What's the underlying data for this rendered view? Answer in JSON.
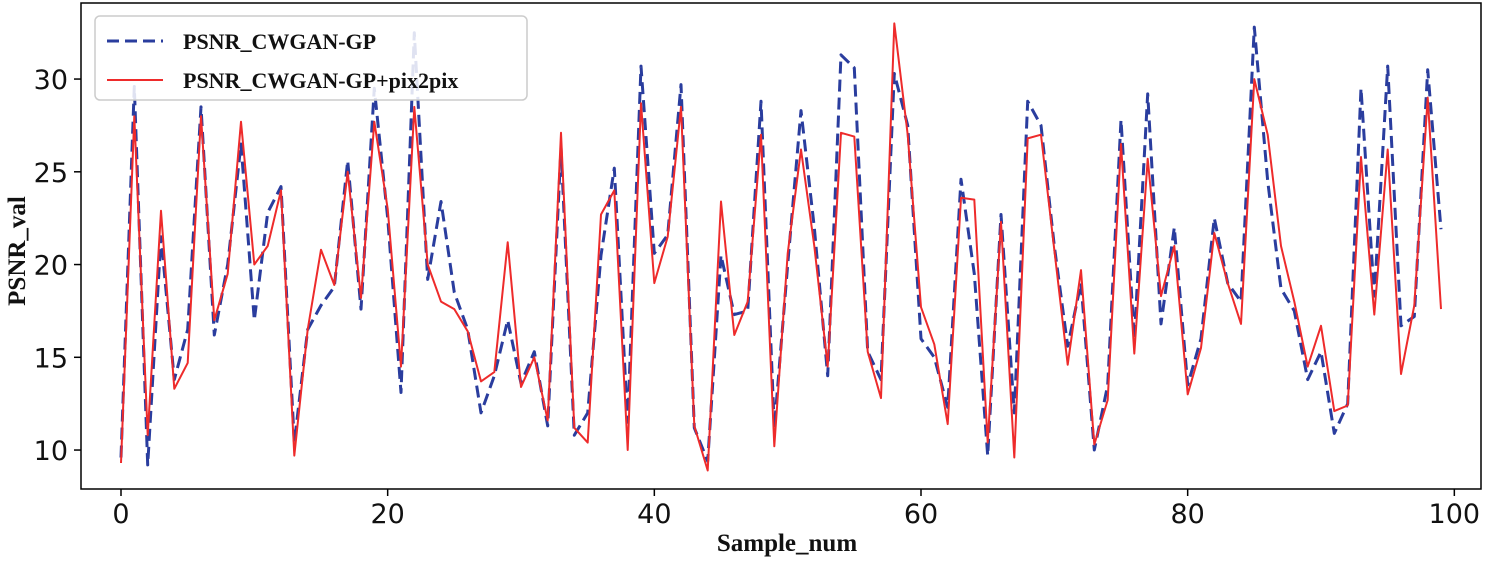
{
  "chart_data": {
    "type": "line",
    "title": "",
    "xlabel": "Sample_num",
    "ylabel": "PSNR_val",
    "xlim": [
      -3,
      102
    ],
    "ylim": [
      7.9,
      34.1
    ],
    "xticks": [
      0,
      20,
      40,
      60,
      80,
      100
    ],
    "yticks": [
      10,
      15,
      20,
      25,
      30
    ],
    "grid": false,
    "legend_position": "top-left",
    "x": [
      0,
      1,
      2,
      3,
      4,
      5,
      6,
      7,
      8,
      9,
      10,
      11,
      12,
      13,
      14,
      15,
      16,
      17,
      18,
      19,
      20,
      21,
      22,
      23,
      24,
      25,
      26,
      27,
      28,
      29,
      30,
      31,
      32,
      33,
      34,
      35,
      36,
      37,
      38,
      39,
      40,
      41,
      42,
      43,
      44,
      45,
      46,
      47,
      48,
      49,
      50,
      51,
      52,
      53,
      54,
      55,
      56,
      57,
      58,
      59,
      60,
      61,
      62,
      63,
      64,
      65,
      66,
      67,
      68,
      69,
      70,
      71,
      72,
      73,
      74,
      75,
      76,
      77,
      78,
      79,
      80,
      81,
      82,
      83,
      84,
      85,
      86,
      87,
      88,
      89,
      90,
      91,
      92,
      93,
      94,
      95,
      96,
      97,
      98,
      99
    ],
    "series": [
      {
        "name": "PSNR_CWGAN-GP",
        "color": "#2a3d9e",
        "style": "dashed",
        "values": [
          9.6,
          29.6,
          9.2,
          21.5,
          13.8,
          16.5,
          28.5,
          16.2,
          20.0,
          26.5,
          17.0,
          22.8,
          24.2,
          10.4,
          16.5,
          17.8,
          18.8,
          25.6,
          17.6,
          29.5,
          22.5,
          13.1,
          32.5,
          19.2,
          23.4,
          18.5,
          16.5,
          12.0,
          14.0,
          17.0,
          13.6,
          15.3,
          11.3,
          26.3,
          10.8,
          12.0,
          20.5,
          25.2,
          11.5,
          30.7,
          20.6,
          21.6,
          29.7,
          11.2,
          9.4,
          20.5,
          17.3,
          17.5,
          28.8,
          11.2,
          20.0,
          28.3,
          22.0,
          14.0,
          31.3,
          30.6,
          15.3,
          13.8,
          30.3,
          27.5,
          16.0,
          15.0,
          12.3,
          24.6,
          19.5,
          9.7,
          22.7,
          12.0,
          28.8,
          27.5,
          21.0,
          15.6,
          19.0,
          10.0,
          13.5,
          27.8,
          16.0,
          29.2,
          16.8,
          22.0,
          13.5,
          16.0,
          22.5,
          19.0,
          18.0,
          32.8,
          24.5,
          18.7,
          17.5,
          13.8,
          15.3,
          10.9,
          12.5,
          29.5,
          18.3,
          30.7,
          16.7,
          17.2,
          30.5,
          21.9
        ]
      },
      {
        "name": "PSNR_CWGAN-GP+pix2pix",
        "color": "#ee2b2b",
        "style": "solid",
        "values": [
          9.3,
          28.0,
          10.8,
          22.9,
          13.3,
          14.7,
          28.0,
          17.0,
          19.5,
          27.7,
          20.0,
          21.0,
          24.0,
          9.7,
          16.5,
          20.8,
          18.9,
          25.0,
          18.2,
          27.7,
          23.0,
          14.5,
          28.5,
          20.0,
          18.0,
          17.6,
          16.4,
          13.7,
          14.2,
          21.2,
          13.4,
          15.0,
          11.6,
          27.1,
          11.2,
          10.4,
          22.7,
          24.0,
          10.0,
          28.7,
          19.0,
          21.5,
          28.5,
          11.3,
          8.9,
          23.4,
          16.2,
          18.0,
          27.0,
          10.2,
          20.6,
          26.2,
          21.0,
          14.5,
          27.1,
          26.9,
          15.3,
          12.8,
          33.0,
          27.0,
          17.7,
          15.7,
          11.4,
          23.6,
          23.5,
          10.4,
          22.3,
          9.6,
          26.8,
          27.0,
          20.8,
          14.6,
          19.7,
          10.3,
          12.7,
          26.5,
          15.2,
          25.7,
          18.3,
          21.0,
          13.0,
          15.5,
          21.7,
          19.0,
          16.8,
          30.0,
          27.0,
          21.0,
          18.0,
          14.5,
          16.7,
          12.1,
          12.4,
          25.8,
          17.3,
          26.2,
          14.1,
          17.8,
          29.0,
          17.6
        ]
      }
    ]
  }
}
